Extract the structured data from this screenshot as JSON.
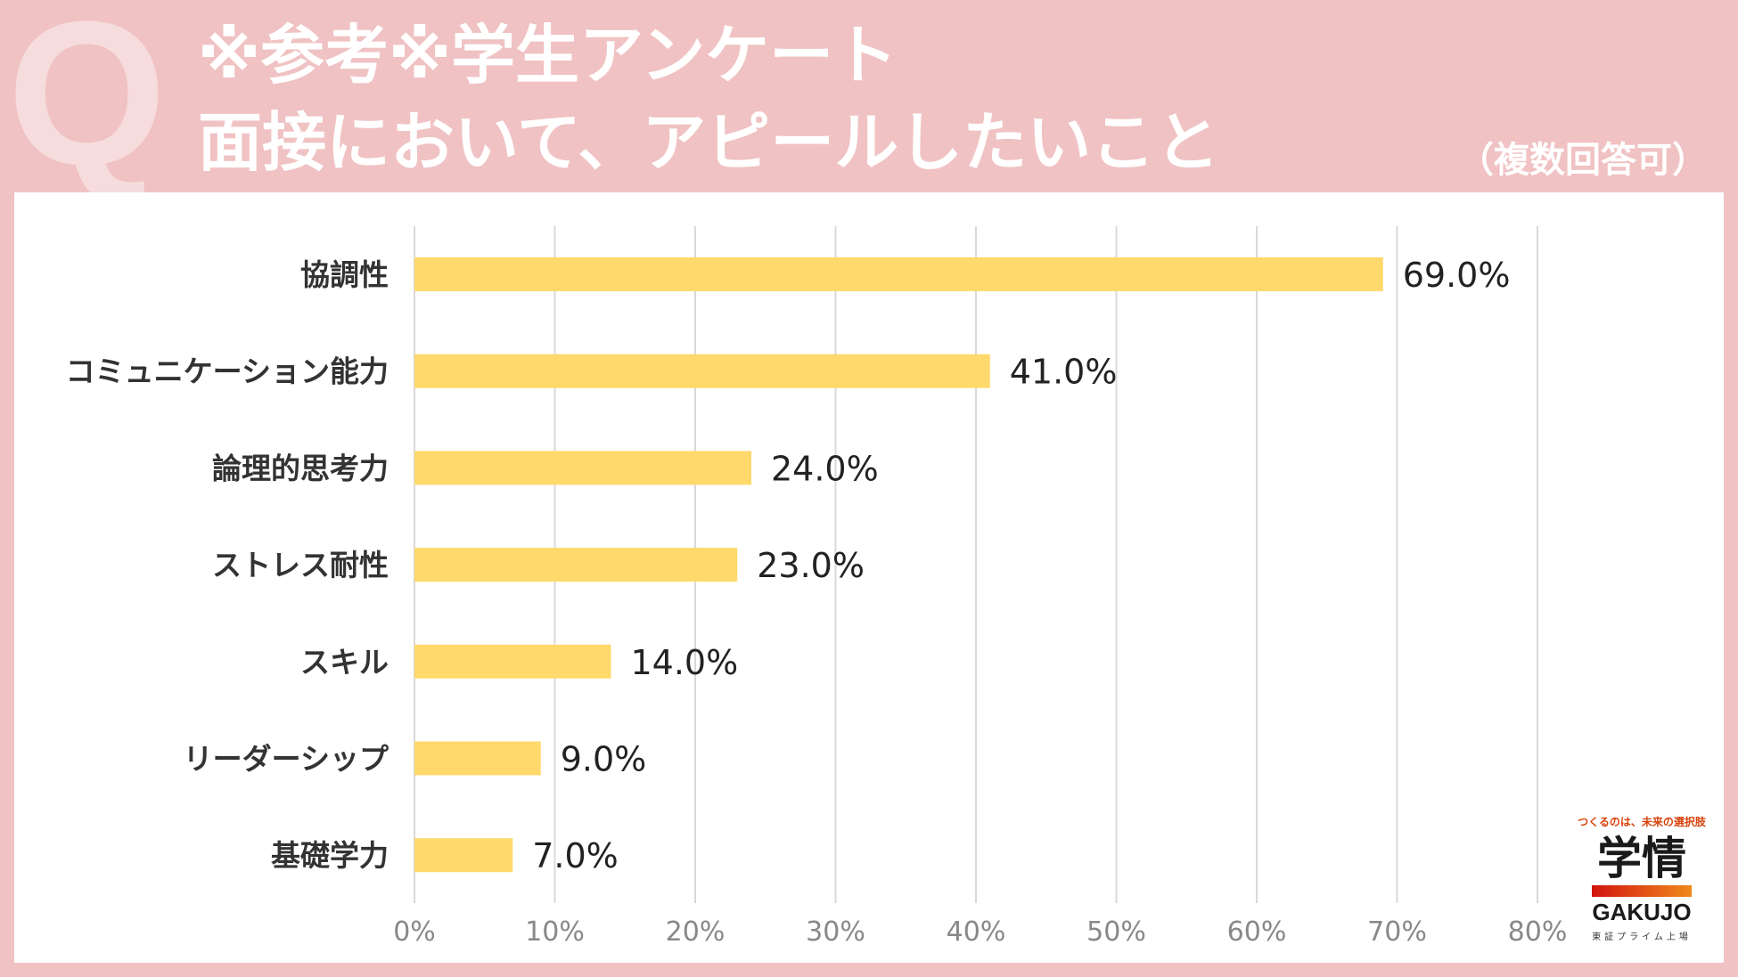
{
  "header": {
    "q_letter": "Q",
    "title_line1": "※参考※学生アンケート",
    "title_line2": "面接において、アピールしたいこと",
    "note": "（複数回答可）"
  },
  "chart_data": {
    "type": "bar",
    "orientation": "horizontal",
    "title": "面接において、アピールしたいこと",
    "categories": [
      "協調性",
      "コミュニケーション能力",
      "論理的思考力",
      "ストレス耐性",
      "スキル",
      "リーダーシップ",
      "基礎学力"
    ],
    "values": [
      69.0,
      41.0,
      24.0,
      23.0,
      14.0,
      9.0,
      7.0
    ],
    "value_labels": [
      "69.0%",
      "41.0%",
      "24.0%",
      "23.0%",
      "14.0%",
      "9.0%",
      "7.0%"
    ],
    "xlim": [
      0,
      80
    ],
    "x_ticks": [
      0,
      10,
      20,
      30,
      40,
      50,
      60,
      70,
      80
    ],
    "x_tick_labels": [
      "0%",
      "10%",
      "20%",
      "30%",
      "40%",
      "50%",
      "60%",
      "70%",
      "80%"
    ],
    "xlabel": "",
    "ylabel": "",
    "grid": true,
    "legend": "none",
    "bar_color": "#ffd96b",
    "grid_color": "#d9d9d9"
  },
  "logo": {
    "tagline": "つくるのは、未来の選択肢",
    "kanji": "学情",
    "name": "GAKUJO",
    "sub": "東証プライム上場"
  },
  "colors": {
    "background": "#f0c2c3",
    "panel": "#ffffff",
    "title_text": "#ffffff",
    "label_text": "#333333",
    "tick_text": "#888888"
  }
}
